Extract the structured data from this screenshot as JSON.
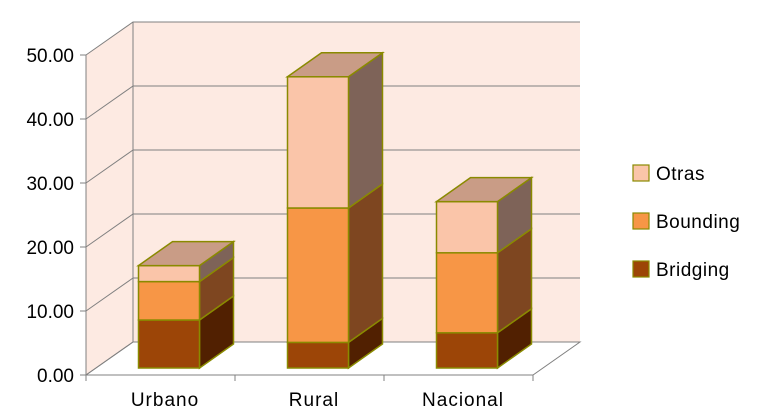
{
  "chart_data": {
    "type": "bar",
    "stacked": true,
    "three_d": true,
    "categories": [
      "Urbano",
      "Rural",
      "Nacional"
    ],
    "series": [
      {
        "name": "Bridging",
        "values": [
          7.5,
          4.0,
          5.5
        ],
        "color": "#9c4507",
        "side_color": "#512001",
        "top_color": "#7b3606"
      },
      {
        "name": "Bounding",
        "values": [
          6.0,
          21.0,
          12.5
        ],
        "color": "#f79646",
        "side_color": "#7e4620",
        "top_color": "#c97838"
      },
      {
        "name": "Otras",
        "values": [
          2.5,
          20.5,
          8.0
        ],
        "color": "#fac5a9",
        "side_color": "#7e6358",
        "top_color": "#c99c86"
      }
    ],
    "y_ticks": [
      "0.00",
      "10.00",
      "20.00",
      "30.00",
      "40.00",
      "50.00"
    ],
    "ylim": [
      0,
      50
    ],
    "grid": true,
    "legend_position": "right",
    "legend_order": [
      "Otras",
      "Bounding",
      "Bridging"
    ],
    "wall_color": "#fdeae2",
    "bar_outline_color": "#8a8a00"
  }
}
